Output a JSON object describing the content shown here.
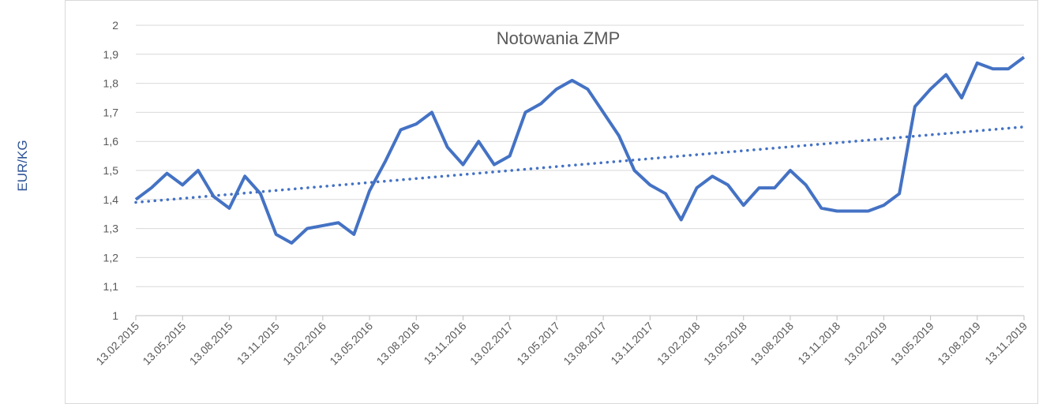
{
  "chart_data": {
    "type": "line",
    "title": "Notowania ZMP",
    "y_label": "EUR/KG",
    "x": [
      "13.02.2015",
      "13.03.2015",
      "13.04.2015",
      "13.05.2015",
      "13.06.2015",
      "13.07.2015",
      "13.08.2015",
      "13.09.2015",
      "13.10.2015",
      "13.11.2015",
      "13.12.2015",
      "13.01.2016",
      "13.02.2016",
      "13.03.2016",
      "13.04.2016",
      "13.05.2016",
      "13.06.2016",
      "13.07.2016",
      "13.08.2016",
      "13.09.2016",
      "13.10.2016",
      "13.11.2016",
      "13.12.2016",
      "13.01.2017",
      "13.02.2017",
      "13.03.2017",
      "13.04.2017",
      "13.05.2017",
      "13.06.2017",
      "13.07.2017",
      "13.08.2017",
      "13.09.2017",
      "13.10.2017",
      "13.11.2017",
      "13.12.2017",
      "13.01.2018",
      "13.02.2018",
      "13.03.2018",
      "13.04.2018",
      "13.05.2018",
      "13.06.2018",
      "13.07.2018",
      "13.08.2018",
      "13.09.2018",
      "13.10.2018",
      "13.11.2018",
      "13.12.2018",
      "13.01.2019",
      "13.02.2019",
      "13.03.2019",
      "13.04.2019",
      "13.05.2019",
      "13.06.2019",
      "13.07.2019",
      "13.08.2019",
      "13.09.2019",
      "13.10.2019",
      "13.11.2019"
    ],
    "series": [
      {
        "color": "#4472c4",
        "values": [
          1.4,
          1.44,
          1.49,
          1.45,
          1.5,
          1.41,
          1.37,
          1.48,
          1.42,
          1.28,
          1.25,
          1.3,
          1.31,
          1.32,
          1.28,
          1.43,
          1.53,
          1.64,
          1.66,
          1.7,
          1.58,
          1.52,
          1.6,
          1.52,
          1.55,
          1.7,
          1.73,
          1.78,
          1.81,
          1.78,
          1.7,
          1.62,
          1.5,
          1.45,
          1.42,
          1.33,
          1.44,
          1.48,
          1.45,
          1.38,
          1.44,
          1.44,
          1.5,
          1.45,
          1.37,
          1.36,
          1.36,
          1.36,
          1.38,
          1.42,
          1.72,
          1.78,
          1.83,
          1.75,
          1.87,
          1.85,
          1.85,
          1.89
        ]
      }
    ],
    "trendline": {
      "type": "linear",
      "color": "#4472c4",
      "values": [
        1.39,
        1.65
      ]
    },
    "xticks": [
      "13.02.2015",
      "13.05.2015",
      "13.08.2015",
      "13.11.2015",
      "13.02.2016",
      "13.05.2016",
      "13.08.2016",
      "13.11.2016",
      "13.02.2017",
      "13.05.2017",
      "13.08.2017",
      "13.11.2017",
      "13.02.2018",
      "13.05.2018",
      "13.08.2018",
      "13.11.2018",
      "13.02.2019",
      "13.05.2019",
      "13.08.2019",
      "13.11.2019"
    ],
    "ylim": [
      1,
      2
    ],
    "yticks": [
      1,
      {
        "value": 1.1,
        "label": "1,1"
      },
      {
        "value": 1.2,
        "label": "1,2"
      },
      {
        "value": 1.3,
        "label": "1,3"
      },
      {
        "value": 1.4,
        "label": "1,4"
      },
      {
        "value": 1.5,
        "label": "1,5"
      },
      {
        "value": 1.6,
        "label": "1,6"
      },
      {
        "value": 1.7,
        "label": "1,7"
      },
      {
        "value": 1.8,
        "label": "1,8"
      },
      {
        "value": 1.9,
        "label": "1,9"
      },
      2
    ],
    "grid": true
  }
}
